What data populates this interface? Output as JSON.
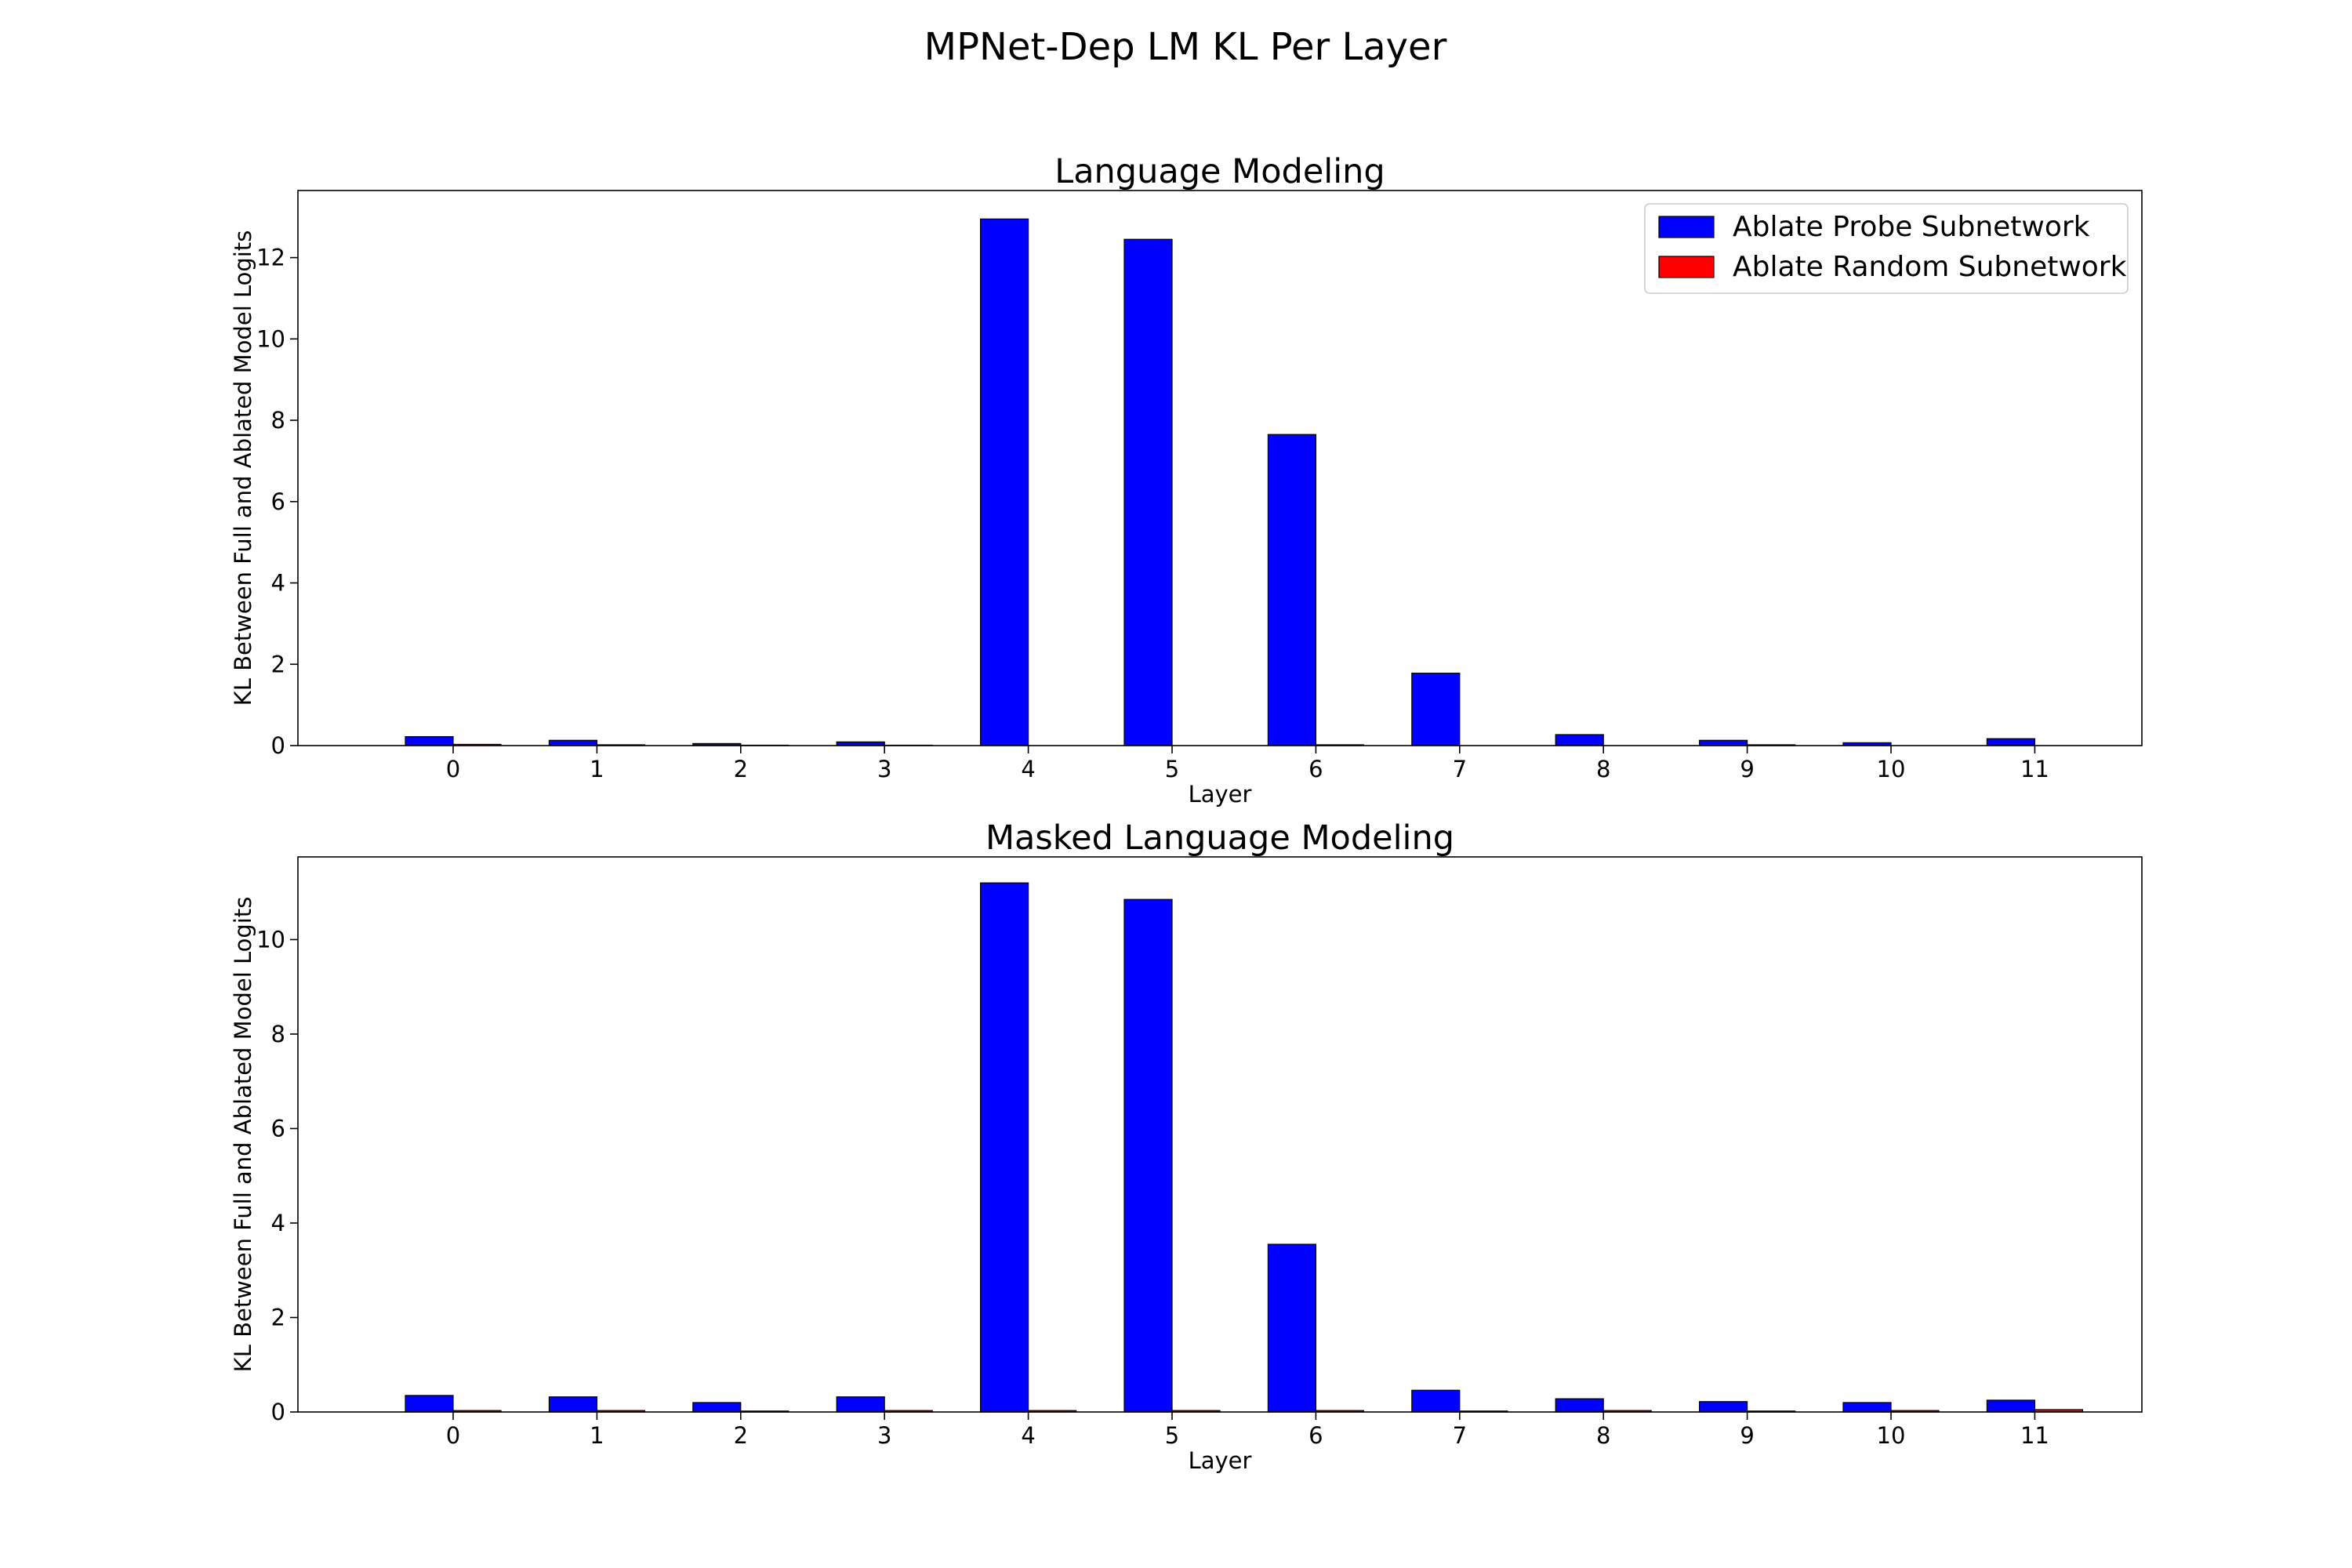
{
  "figure": {
    "suptitle": "MPNet-Dep LM KL Per Layer"
  },
  "colors": {
    "probe": "#0000ff",
    "random": "#ff0000",
    "edge": "#000000"
  },
  "chart_data": [
    {
      "type": "bar",
      "title": "Language Modeling",
      "xlabel": "Layer",
      "ylabel": "KL Between Full and Ablated Model Logits",
      "categories": [
        "0",
        "1",
        "2",
        "3",
        "4",
        "5",
        "6",
        "7",
        "8",
        "9",
        "10",
        "11"
      ],
      "ylim": [
        0,
        13.65
      ],
      "yticks": [
        0,
        2,
        4,
        6,
        8,
        10,
        12
      ],
      "legend": "top-right",
      "grid": false,
      "series": [
        {
          "name": "Ablate Probe Subnetwork",
          "color": "#0000ff",
          "values": [
            0.22,
            0.13,
            0.05,
            0.09,
            12.95,
            12.45,
            7.65,
            1.78,
            0.27,
            0.13,
            0.07,
            0.17
          ]
        },
        {
          "name": "Ablate Random Subnetwork",
          "color": "#ff0000",
          "values": [
            0.03,
            0.02,
            0.01,
            0.01,
            0.0,
            0.0,
            0.02,
            0.0,
            0.0,
            0.02,
            0.0,
            0.0
          ]
        }
      ]
    },
    {
      "type": "bar",
      "title": "Masked Language Modeling",
      "xlabel": "Layer",
      "ylabel": "KL Between Full and Ablated Model Logits",
      "categories": [
        "0",
        "1",
        "2",
        "3",
        "4",
        "5",
        "6",
        "7",
        "8",
        "9",
        "10",
        "11"
      ],
      "ylim": [
        0,
        11.75
      ],
      "yticks": [
        0,
        2,
        4,
        6,
        8,
        10
      ],
      "grid": false,
      "series": [
        {
          "name": "Ablate Probe Subnetwork",
          "color": "#0000ff",
          "values": [
            0.35,
            0.32,
            0.2,
            0.32,
            11.2,
            10.85,
            3.55,
            0.46,
            0.28,
            0.22,
            0.2,
            0.25
          ]
        },
        {
          "name": "Ablate Random Subnetwork",
          "color": "#ff0000",
          "values": [
            0.03,
            0.03,
            0.02,
            0.03,
            0.03,
            0.03,
            0.03,
            0.02,
            0.03,
            0.02,
            0.03,
            0.05
          ]
        }
      ]
    }
  ]
}
